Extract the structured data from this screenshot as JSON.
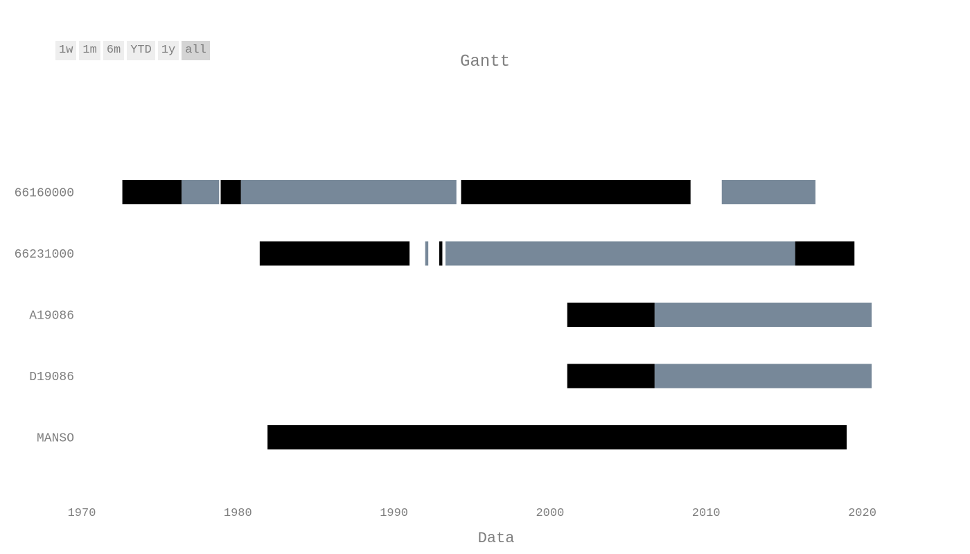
{
  "range_buttons": [
    {
      "label": "1w",
      "active": false
    },
    {
      "label": "1m",
      "active": false
    },
    {
      "label": "6m",
      "active": false
    },
    {
      "label": "YTD",
      "active": false
    },
    {
      "label": "1y",
      "active": false
    },
    {
      "label": "all",
      "active": true
    }
  ],
  "colors": {
    "black": "#000000",
    "slate": "#778899"
  },
  "chart_data": {
    "type": "gantt",
    "title": "Gantt",
    "xlabel": "Data",
    "ylabel": "",
    "xlim": [
      1970,
      2025
    ],
    "x_ticks": [
      1970,
      1980,
      1990,
      2000,
      2010,
      2020
    ],
    "grid": false,
    "categories": [
      "66160000",
      "66231000",
      "A19086",
      "D19086",
      "MANSO"
    ],
    "tasks": [
      {
        "row": "66160000",
        "start": 1972.6,
        "end": 1976.4,
        "color": "#000000"
      },
      {
        "row": "66160000",
        "start": 1976.4,
        "end": 1978.8,
        "color": "#778899"
      },
      {
        "row": "66160000",
        "start": 1978.9,
        "end": 1980.2,
        "color": "#000000"
      },
      {
        "row": "66160000",
        "start": 1980.2,
        "end": 1994.0,
        "color": "#778899"
      },
      {
        "row": "66160000",
        "start": 1994.3,
        "end": 2009.0,
        "color": "#000000"
      },
      {
        "row": "66160000",
        "start": 2011.0,
        "end": 2017.0,
        "color": "#778899"
      },
      {
        "row": "66231000",
        "start": 1981.4,
        "end": 1991.0,
        "color": "#000000"
      },
      {
        "row": "66231000",
        "start": 1992.0,
        "end": 1992.2,
        "color": "#778899"
      },
      {
        "row": "66231000",
        "start": 1992.9,
        "end": 1993.1,
        "color": "#000000"
      },
      {
        "row": "66231000",
        "start": 1993.3,
        "end": 2015.7,
        "color": "#778899"
      },
      {
        "row": "66231000",
        "start": 2015.7,
        "end": 2019.5,
        "color": "#000000"
      },
      {
        "row": "A19086",
        "start": 2001.1,
        "end": 2006.7,
        "color": "#000000"
      },
      {
        "row": "A19086",
        "start": 2006.7,
        "end": 2020.6,
        "color": "#778899"
      },
      {
        "row": "D19086",
        "start": 2001.1,
        "end": 2006.7,
        "color": "#000000"
      },
      {
        "row": "D19086",
        "start": 2006.7,
        "end": 2020.6,
        "color": "#778899"
      },
      {
        "row": "MANSO",
        "start": 1981.9,
        "end": 2019.0,
        "color": "#000000"
      }
    ]
  }
}
